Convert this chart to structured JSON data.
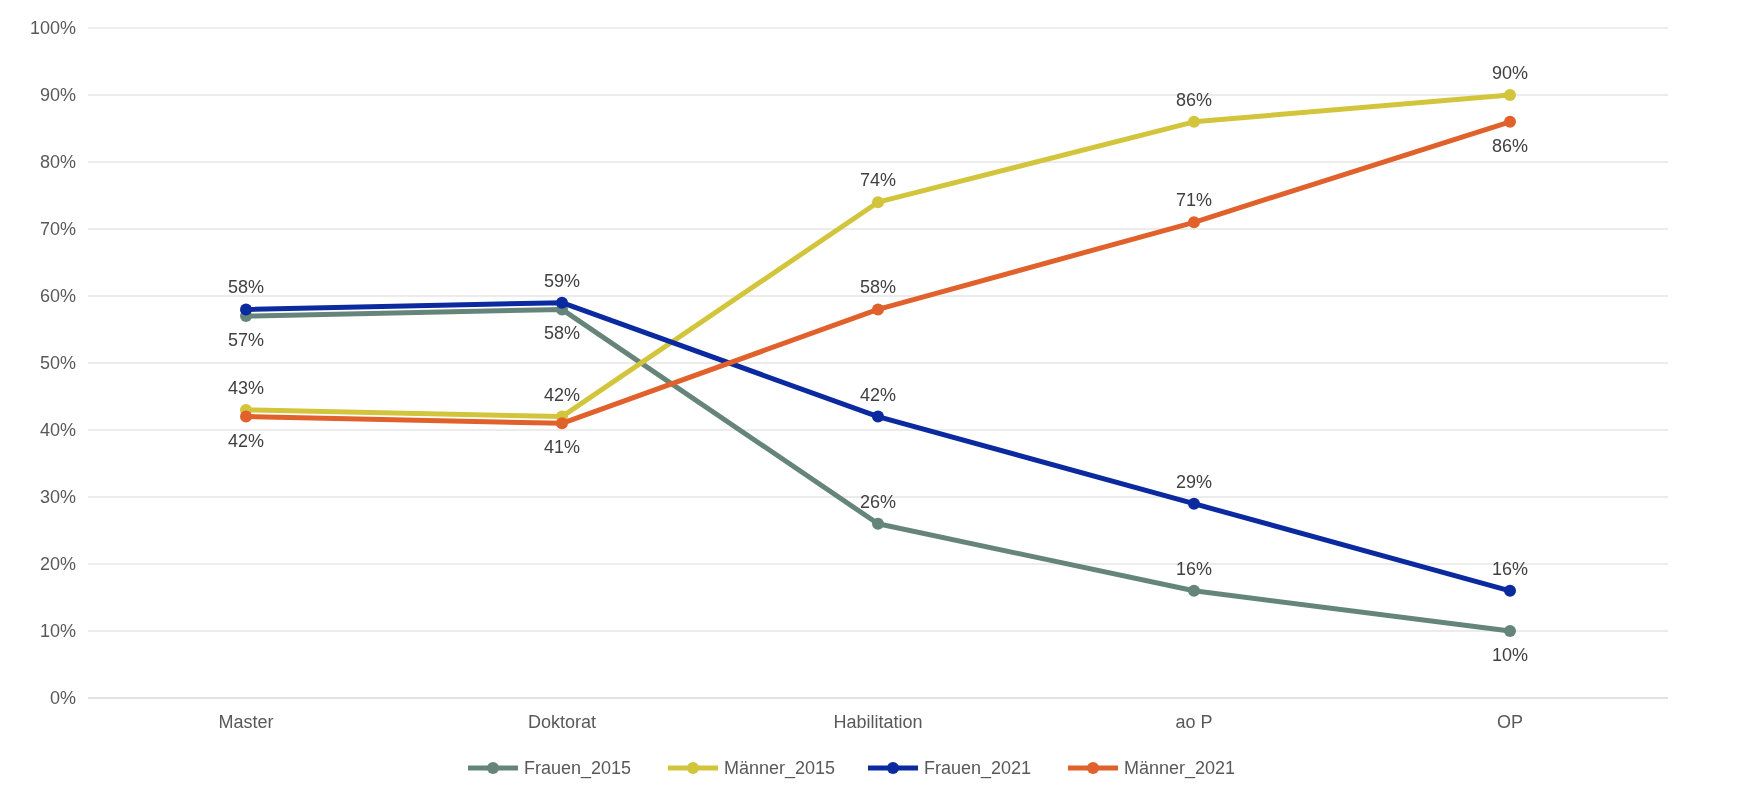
{
  "chart_data": {
    "type": "line",
    "categories": [
      "Master",
      "Doktorat",
      "Habilitation",
      "ao P",
      "OP"
    ],
    "series": [
      {
        "name": "Frauen_2015",
        "color": "#66857a",
        "values": [
          57,
          58,
          26,
          16,
          10
        ],
        "value_labels": [
          "57%",
          "58%",
          "26%",
          "16%",
          "10%"
        ]
      },
      {
        "name": "Männer_2015",
        "color": "#d2c53c",
        "values": [
          43,
          42,
          74,
          86,
          90
        ],
        "value_labels": [
          "43%",
          "42%",
          "74%",
          "86%",
          "90%"
        ]
      },
      {
        "name": "Frauen_2021",
        "color": "#0c2aa0",
        "values": [
          58,
          59,
          42,
          29,
          16
        ],
        "value_labels": [
          "58%",
          "59%",
          "42%",
          "29%",
          "16%"
        ]
      },
      {
        "name": "Männer_2021",
        "color": "#e0612b",
        "values": [
          42,
          41,
          58,
          71,
          86
        ],
        "value_labels": [
          "42%",
          "41%",
          "58%",
          "71%",
          "86%"
        ]
      }
    ],
    "ylim": [
      0,
      100
    ],
    "yticks": [
      {
        "value": 0,
        "label": "0%"
      },
      {
        "value": 10,
        "label": "10%"
      },
      {
        "value": 20,
        "label": "20%"
      },
      {
        "value": 30,
        "label": "30%"
      },
      {
        "value": 40,
        "label": "40%"
      },
      {
        "value": 50,
        "label": "50%"
      },
      {
        "value": 60,
        "label": "60%"
      },
      {
        "value": 70,
        "label": "70%"
      },
      {
        "value": 80,
        "label": "80%"
      },
      {
        "value": 90,
        "label": "90%"
      },
      {
        "value": 100,
        "label": "100%"
      }
    ],
    "grid": "y",
    "legend": "bottom",
    "marker": "circle",
    "line_style": "solid"
  }
}
